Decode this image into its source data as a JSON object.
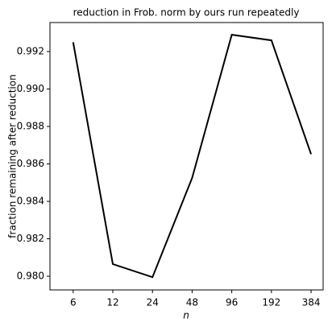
{
  "chart_data": {
    "type": "line",
    "title": "reduction in Frob. norm by ours run repeatedly",
    "x_label": "n",
    "y_label": "fraction remaining after reduction",
    "x": [
      6,
      12,
      24,
      48,
      96,
      192,
      384
    ],
    "series": [
      {
        "color": "#000000",
        "values": [
          0.9925,
          0.98065,
          0.97995,
          0.98525,
          0.9929,
          0.9926,
          0.98652
        ]
      }
    ],
    "xscale": "log",
    "xlim": [
      4.0,
      474
    ],
    "xticks": [
      6,
      12,
      24,
      48,
      96,
      192,
      384
    ],
    "ylim": [
      0.97927,
      0.99355
    ],
    "yticks": [
      {
        "value": 0.98,
        "label": "0.980"
      },
      0.982,
      0.984,
      0.986,
      0.988,
      {
        "value": 0.99,
        "label": "0.990"
      },
      0.992
    ],
    "grid": false
  }
}
